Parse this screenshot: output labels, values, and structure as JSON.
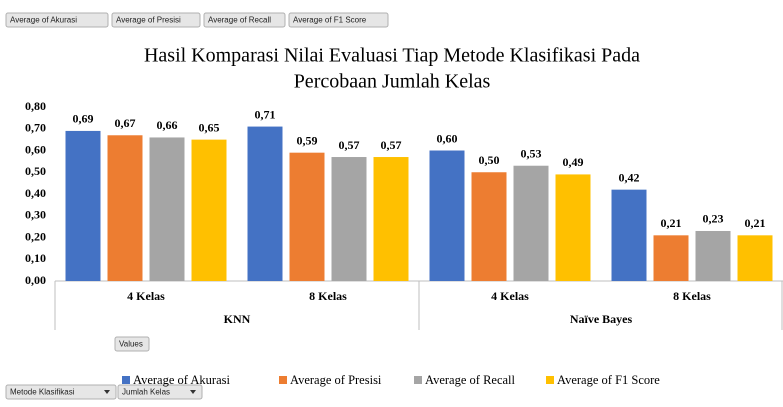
{
  "pivot_buttons": {
    "values": [
      "Average of Akurasi",
      "Average of Presisi",
      "Average of Recall",
      "Average of F1 Score"
    ],
    "legend": "Values",
    "axis": [
      "Metode Klasifikasi",
      "Jumlah Kelas"
    ]
  },
  "chart_data": {
    "type": "bar",
    "title": [
      "Hasil Komparasi Nilai Evaluasi Tiap Metode Klasifikasi Pada",
      "Percobaan Jumlah Kelas"
    ],
    "categories": [
      "4 Kelas",
      "8 Kelas",
      "4 Kelas",
      "8 Kelas"
    ],
    "category_groups": [
      "KNN",
      "Naïve Bayes"
    ],
    "series": [
      {
        "name": "Average of Akurasi",
        "color": "#4472c4",
        "values": [
          0.69,
          0.71,
          0.6,
          0.42
        ],
        "value_labels": [
          "0,69",
          "0,71",
          "0,60",
          "0,42"
        ]
      },
      {
        "name": "Average of Presisi",
        "color": "#ed7d31",
        "values": [
          0.67,
          0.59,
          0.5,
          0.21
        ],
        "value_labels": [
          "0,67",
          "0,59",
          "0,50",
          "0,21"
        ]
      },
      {
        "name": "Average of Recall",
        "color": "#a5a5a5",
        "values": [
          0.66,
          0.57,
          0.53,
          0.23
        ],
        "value_labels": [
          "0,66",
          "0,57",
          "0,53",
          "0,23"
        ]
      },
      {
        "name": "Average of F1 Score",
        "color": "#ffc000",
        "values": [
          0.65,
          0.57,
          0.49,
          0.21
        ],
        "value_labels": [
          "0,65",
          "0,57",
          "0,49",
          "0,21"
        ]
      }
    ],
    "ylim": [
      0,
      0.8
    ],
    "yticks": [
      {
        "value": 0,
        "label": "0,00"
      },
      {
        "value": 0.1,
        "label": "0,10"
      },
      {
        "value": 0.2,
        "label": "0,20"
      },
      {
        "value": 0.3,
        "label": "0,30"
      },
      {
        "value": 0.4,
        "label": "0,40"
      },
      {
        "value": 0.5,
        "label": "0,50"
      },
      {
        "value": 0.6,
        "label": "0,60"
      },
      {
        "value": 0.7,
        "label": "0,70"
      },
      {
        "value": 0.8,
        "label": "0,80"
      }
    ],
    "grid": false
  }
}
